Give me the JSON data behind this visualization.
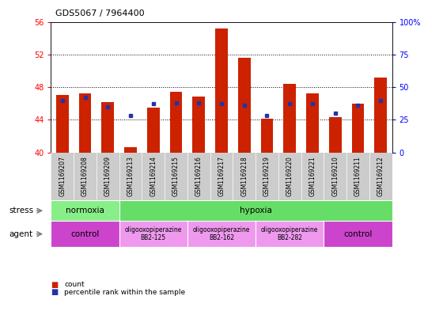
{
  "title": "GDS5067 / 7964400",
  "samples": [
    "GSM1169207",
    "GSM1169208",
    "GSM1169209",
    "GSM1169213",
    "GSM1169214",
    "GSM1169215",
    "GSM1169216",
    "GSM1169217",
    "GSM1169218",
    "GSM1169219",
    "GSM1169220",
    "GSM1169221",
    "GSM1169210",
    "GSM1169211",
    "GSM1169212"
  ],
  "counts": [
    47.0,
    47.2,
    46.2,
    40.6,
    45.5,
    47.4,
    46.8,
    55.2,
    51.6,
    44.1,
    48.4,
    47.2,
    44.3,
    46.0,
    49.2
  ],
  "percentile_rank": [
    40,
    42,
    35,
    28,
    37,
    38,
    38,
    37,
    36,
    28,
    37,
    37,
    30,
    36,
    40
  ],
  "ymin": 40,
  "ymax": 56,
  "yticks": [
    40,
    44,
    48,
    52,
    56
  ],
  "right_yticks": [
    0,
    25,
    50,
    75,
    100
  ],
  "bar_color": "#cc2200",
  "square_color": "#2233aa",
  "bar_width": 0.55,
  "stress_groups": [
    {
      "label": "normoxia",
      "start": 0,
      "end": 3,
      "color": "#88ee88"
    },
    {
      "label": "hypoxia",
      "start": 3,
      "end": 15,
      "color": "#66dd66"
    }
  ],
  "agent_groups": [
    {
      "label": "control",
      "start": 0,
      "end": 3,
      "color": "#cc44cc"
    },
    {
      "label": "oligooxopiperazine\nBB2-125",
      "start": 3,
      "end": 6,
      "color": "#ee99ee"
    },
    {
      "label": "oligooxopiperazine\nBB2-162",
      "start": 6,
      "end": 9,
      "color": "#ee99ee"
    },
    {
      "label": "oligooxopiperazine\nBB2-282",
      "start": 9,
      "end": 12,
      "color": "#ee99ee"
    },
    {
      "label": "control",
      "start": 12,
      "end": 15,
      "color": "#cc44cc"
    }
  ],
  "bg_color": "#ffffff",
  "tick_area_bg": "#cccccc",
  "label_stress": "stress",
  "label_agent": "agent"
}
